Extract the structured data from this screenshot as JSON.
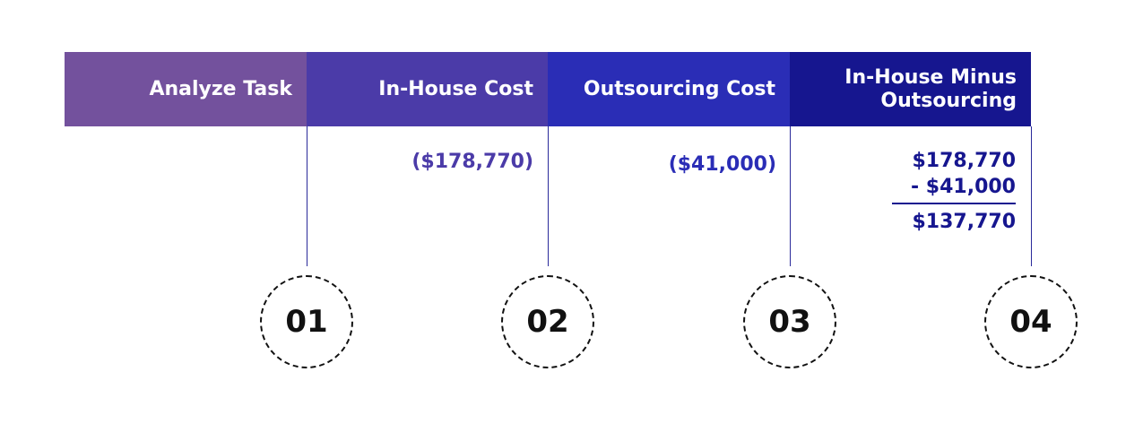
{
  "columns": [
    {
      "header": "Analyze Task",
      "step": "01"
    },
    {
      "header": "In-House Cost",
      "value": "($178,770)",
      "step": "02"
    },
    {
      "header": "Outsourcing Cost",
      "value": "($41,000)",
      "step": "03"
    },
    {
      "header": "In-House Minus Outsourcing",
      "calculation": [
        "$178,770",
        "- $41,000",
        "$137,770"
      ],
      "step": "04"
    }
  ]
}
